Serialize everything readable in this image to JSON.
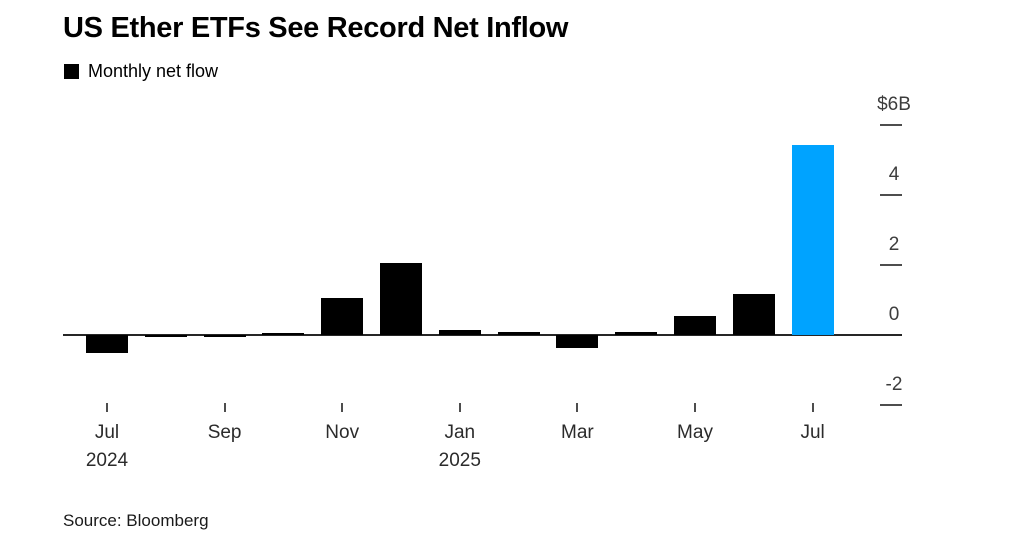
{
  "chart": {
    "title": "US Ether ETFs See Record Net Inflow",
    "legend_label": "Monthly net flow",
    "source": "Source: Bloomberg"
  },
  "chart_data": {
    "type": "bar",
    "title": "US Ether ETFs See Record Net Inflow",
    "series_name": "Monthly net flow",
    "unit": "$B",
    "categories": [
      "Jul 2024",
      "Aug 2024",
      "Sep 2024",
      "Oct 2024",
      "Nov 2024",
      "Dec 2024",
      "Jan 2025",
      "Feb 2025",
      "Mar 2025",
      "Apr 2025",
      "May 2025",
      "Jun 2025",
      "Jul 2025"
    ],
    "values": [
      -0.5,
      -0.03,
      -0.03,
      0.07,
      1.05,
      2.05,
      0.13,
      0.08,
      -0.38,
      0.08,
      0.55,
      1.18,
      5.43
    ],
    "highlight_index": 12,
    "colors": {
      "default": "#000000",
      "highlight": "#00A3FF"
    },
    "y_axis": {
      "side": "right",
      "ylim": [
        -2.6,
        6.3
      ],
      "ticks": [
        {
          "label": "$6B",
          "value": 6
        },
        {
          "label": "4",
          "value": 4
        },
        {
          "label": "2",
          "value": 2
        },
        {
          "label": "0",
          "value": 0
        },
        {
          "label": "-2",
          "value": -2
        }
      ]
    },
    "x_axis": {
      "ticks": [
        {
          "label": "Jul",
          "sublabel": "2024",
          "month_index": 0
        },
        {
          "label": "Sep",
          "sublabel": "",
          "month_index": 2
        },
        {
          "label": "Nov",
          "sublabel": "",
          "month_index": 4
        },
        {
          "label": "Jan",
          "sublabel": "2025",
          "month_index": 6
        },
        {
          "label": "Mar",
          "sublabel": "",
          "month_index": 8
        },
        {
          "label": "May",
          "sublabel": "",
          "month_index": 10
        },
        {
          "label": "Jul",
          "sublabel": "",
          "month_index": 12
        }
      ]
    },
    "grid": false,
    "legend_position": "top-left"
  }
}
